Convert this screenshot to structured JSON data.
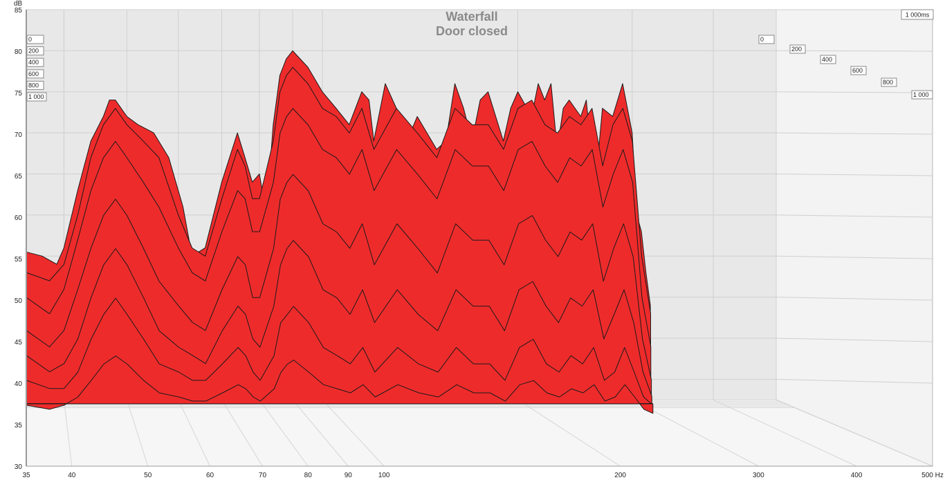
{
  "chart_data": {
    "type": "area",
    "subtype": "waterfall-3d",
    "title": "Waterfall",
    "subtitle": "Door closed",
    "ylabel": "dB",
    "xlabel_unit": "Hz",
    "time_unit_label": "1 000ms",
    "ylim": [
      30,
      85
    ],
    "y_ticks": [
      "85",
      "80",
      "75",
      "70",
      "65",
      "60",
      "55",
      "50",
      "45",
      "40",
      "35",
      "30"
    ],
    "y_tick_values": [
      85,
      80,
      75,
      70,
      65,
      60,
      55,
      50,
      45,
      40,
      35,
      30
    ],
    "xlim": [
      35,
      500
    ],
    "x_scale": "log",
    "x_ticks": [
      "35",
      "40",
      "50",
      "60",
      "70",
      "80",
      "90",
      "100",
      "200",
      "300",
      "400",
      "500 Hz"
    ],
    "x_tick_values": [
      35,
      40,
      50,
      60,
      70,
      80,
      90,
      100,
      200,
      300,
      400,
      500
    ],
    "time_labels_left": [
      "0",
      "200",
      "400",
      "600",
      "800",
      "1 000"
    ],
    "time_labels_right": [
      "0",
      "200",
      "400",
      "600",
      "800",
      "1 000"
    ],
    "time_values_ms": [
      0,
      200,
      400,
      600,
      800,
      1000
    ],
    "fill_color": "#ee2b2b",
    "line_color": "#1a1a1a",
    "grid": true,
    "back_wall_color": "#e9e9e9",
    "floor_color": "#f7f7f7",
    "series": [
      {
        "time_ms": 0,
        "x": [
          35,
          37,
          39,
          40,
          42,
          44,
          46,
          47,
          48,
          50,
          52,
          55,
          58,
          61,
          63,
          66,
          70,
          74,
          76,
          78,
          80,
          82,
          84,
          86,
          88,
          90,
          95,
          100,
          105,
          110,
          115,
          118,
          120,
          125,
          130,
          135,
          140,
          150,
          155,
          160,
          165,
          170,
          175,
          180,
          190,
          195,
          200,
          210,
          215,
          220,
          225,
          230,
          235,
          240,
          250,
          255,
          260,
          265,
          270,
          280,
          290,
          300,
          305,
          310,
          315,
          320
        ],
        "y": [
          55.5,
          55,
          54,
          56,
          63,
          69,
          72,
          74,
          74,
          72,
          71,
          70,
          67,
          61,
          55,
          56,
          64,
          70,
          67,
          64,
          65,
          60,
          71,
          77,
          79,
          80,
          78,
          75,
          73,
          71,
          75,
          74,
          69,
          76,
          73,
          69,
          72,
          68,
          69,
          76,
          73,
          69,
          74,
          75,
          69,
          73,
          75,
          72,
          76,
          74,
          76,
          68,
          73,
          74,
          72,
          74,
          67,
          66,
          73,
          72,
          76,
          70,
          60,
          58,
          53,
          49
        ]
      },
      {
        "time_ms": 100,
        "x": [
          35,
          38,
          40,
          42,
          44,
          46,
          48,
          50,
          53,
          56,
          60,
          63,
          66,
          70,
          74,
          76,
          78,
          80,
          84,
          86,
          88,
          90,
          95,
          100,
          105,
          110,
          115,
          120,
          130,
          140,
          150,
          160,
          170,
          180,
          190,
          200,
          210,
          220,
          230,
          240,
          250,
          260,
          270,
          280,
          290,
          300,
          310,
          320
        ],
        "y": [
          53,
          52,
          54,
          60,
          67,
          71,
          73,
          71,
          69,
          67,
          60,
          56,
          55,
          62,
          68,
          66,
          62,
          62,
          69,
          75,
          77,
          78,
          76,
          73,
          72,
          70,
          73,
          68,
          73,
          70,
          67,
          73,
          71,
          71,
          68,
          73,
          74,
          71,
          70,
          72,
          71,
          73,
          66,
          71,
          73,
          69,
          55,
          48
        ]
      },
      {
        "time_ms": 200,
        "x": [
          35,
          38,
          40,
          42,
          44,
          46,
          48,
          50,
          53,
          56,
          60,
          63,
          66,
          70,
          74,
          76,
          78,
          80,
          84,
          86,
          88,
          90,
          95,
          100,
          105,
          110,
          115,
          120,
          130,
          140,
          150,
          160,
          170,
          180,
          190,
          200,
          210,
          220,
          230,
          240,
          250,
          260,
          270,
          280,
          290,
          300,
          310,
          320
        ],
        "y": [
          50,
          48,
          51,
          57,
          63,
          67,
          69,
          67,
          64,
          61,
          56,
          53,
          52,
          58,
          63,
          62,
          58,
          58,
          64,
          70,
          72,
          73,
          71,
          68,
          67,
          65,
          68,
          63,
          68,
          65,
          62,
          68,
          66,
          66,
          63,
          68,
          69,
          66,
          64,
          67,
          66,
          68,
          61,
          65,
          68,
          64,
          50,
          44
        ]
      },
      {
        "time_ms": 400,
        "x": [
          35,
          38,
          40,
          42,
          44,
          46,
          48,
          50,
          53,
          56,
          60,
          63,
          66,
          70,
          74,
          76,
          78,
          80,
          84,
          86,
          88,
          90,
          95,
          100,
          105,
          110,
          115,
          120,
          130,
          140,
          150,
          160,
          170,
          180,
          190,
          200,
          210,
          220,
          230,
          240,
          250,
          260,
          270,
          280,
          290,
          300,
          310,
          320
        ],
        "y": [
          46,
          44,
          46,
          51,
          56,
          60,
          62,
          60,
          56,
          52,
          49,
          47,
          46,
          51,
          55,
          54,
          50,
          50,
          56,
          62,
          64,
          65,
          63,
          59,
          58,
          56,
          59,
          54,
          59,
          56,
          53,
          59,
          57,
          57,
          54,
          59,
          60,
          57,
          55,
          58,
          57,
          59,
          52,
          56,
          59,
          55,
          45,
          40
        ]
      },
      {
        "time_ms": 600,
        "x": [
          35,
          38,
          40,
          42,
          44,
          46,
          48,
          50,
          53,
          56,
          60,
          63,
          66,
          70,
          74,
          76,
          78,
          80,
          84,
          86,
          88,
          90,
          95,
          100,
          105,
          110,
          115,
          120,
          130,
          140,
          150,
          160,
          170,
          180,
          190,
          200,
          210,
          220,
          230,
          240,
          250,
          260,
          270,
          280,
          290,
          300,
          310,
          320
        ],
        "y": [
          43,
          41,
          42,
          45,
          50,
          54,
          56,
          54,
          50,
          46,
          44,
          43,
          42,
          46,
          49,
          48,
          45,
          44,
          49,
          54,
          56,
          57,
          55,
          51,
          50,
          48,
          51,
          47,
          51,
          48,
          46,
          51,
          49,
          49,
          46,
          51,
          52,
          49,
          47,
          50,
          49,
          51,
          45,
          48,
          51,
          47,
          41,
          38
        ]
      },
      {
        "time_ms": 800,
        "x": [
          35,
          38,
          40,
          42,
          44,
          46,
          48,
          50,
          53,
          56,
          60,
          63,
          66,
          70,
          74,
          76,
          78,
          80,
          84,
          86,
          88,
          90,
          95,
          100,
          105,
          110,
          115,
          120,
          130,
          140,
          150,
          160,
          170,
          180,
          190,
          200,
          210,
          220,
          230,
          240,
          250,
          260,
          270,
          280,
          290,
          300,
          310,
          320
        ],
        "y": [
          40,
          39,
          39,
          41,
          45,
          48,
          50,
          48,
          45,
          42,
          41,
          40,
          40,
          42,
          44,
          43,
          41,
          40,
          43,
          47,
          48,
          49,
          47,
          44,
          43,
          42,
          44,
          41,
          44,
          42,
          41,
          44,
          42,
          42,
          40,
          44,
          45,
          42,
          41,
          43,
          42,
          44,
          40,
          41,
          44,
          41,
          38,
          37
        ]
      },
      {
        "time_ms": 1000,
        "x": [
          35,
          38,
          40,
          42,
          44,
          46,
          48,
          50,
          53,
          56,
          60,
          63,
          66,
          70,
          74,
          76,
          78,
          80,
          84,
          86,
          88,
          90,
          95,
          100,
          105,
          110,
          115,
          120,
          130,
          140,
          150,
          160,
          170,
          180,
          190,
          200,
          210,
          220,
          230,
          240,
          250,
          260,
          270,
          280,
          290,
          300,
          310,
          320
        ],
        "y": [
          37,
          36.5,
          37,
          38,
          40,
          42,
          43,
          42,
          40,
          38.5,
          38,
          37.5,
          37.5,
          38.5,
          39.5,
          39,
          38,
          37.5,
          39,
          41,
          42,
          42.5,
          41,
          39.5,
          39,
          38.5,
          39.5,
          38,
          39.5,
          38.5,
          38,
          39.5,
          38.5,
          38.5,
          37.5,
          39.5,
          40,
          38.5,
          38,
          39,
          38.5,
          39.5,
          37.5,
          38,
          39.5,
          38,
          36.5,
          36
        ]
      }
    ]
  }
}
